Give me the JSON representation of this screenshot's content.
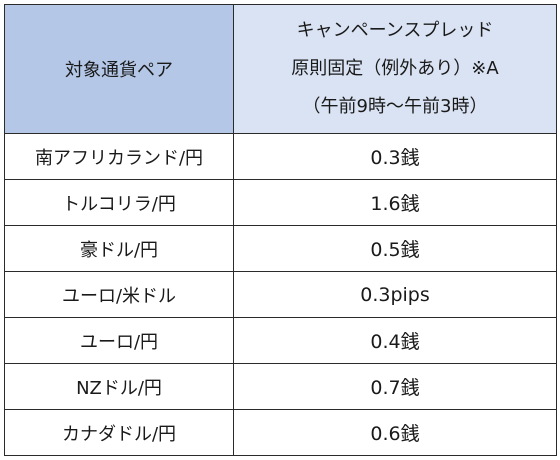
{
  "table": {
    "header": {
      "pair_label": "対象通貨ペア",
      "spread_lines": [
        "キャンペーンスプレッド",
        "原則固定（例外あり）※A",
        "（午前9時～午前3時）"
      ]
    },
    "rows": [
      {
        "pair": "南アフリカランド/円",
        "spread": "0.3銭"
      },
      {
        "pair": "トルコリラ/円",
        "spread": "1.6銭"
      },
      {
        "pair": "豪ドル/円",
        "spread": "0.5銭"
      },
      {
        "pair": "ユーロ/米ドル",
        "spread": "0.3pips"
      },
      {
        "pair": "ユーロ/円",
        "spread": "0.4銭"
      },
      {
        "pair": "NZドル/円",
        "spread": "0.7銭"
      },
      {
        "pair": "カナダドル/円",
        "spread": "0.6銭"
      }
    ]
  },
  "colors": {
    "header_left_bg": "#b4c7e7",
    "header_right_bg": "#dae3f3",
    "border": "#2b2b2b"
  }
}
